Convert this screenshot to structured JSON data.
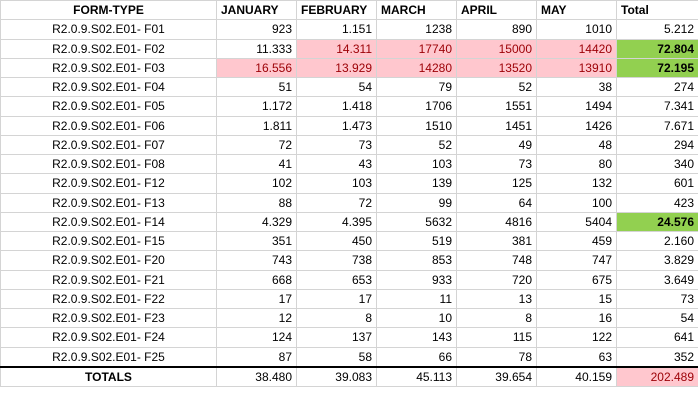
{
  "headers": [
    "FORM-TYPE",
    "JANUARY",
    "FEBRUARY",
    "MARCH",
    "APRIL",
    "MAY",
    "Total"
  ],
  "rows": [
    {
      "form": "R2.0.9.S02.E01- F01",
      "values": [
        "923",
        "1.151",
        "1238",
        "890",
        "1010",
        "5.212"
      ]
    },
    {
      "form": "R2.0.9.S02.E01- F02",
      "values": [
        "11.333",
        "14.311",
        "17740",
        "15000",
        "14420",
        "72.804"
      ]
    },
    {
      "form": "R2.0.9.S02.E01- F03",
      "values": [
        "16.556",
        "13.929",
        "14280",
        "13520",
        "13910",
        "72.195"
      ]
    },
    {
      "form": "R2.0.9.S02.E01- F04",
      "values": [
        "51",
        "54",
        "79",
        "52",
        "38",
        "274"
      ]
    },
    {
      "form": "R2.0.9.S02.E01- F05",
      "values": [
        "1.172",
        "1.418",
        "1706",
        "1551",
        "1494",
        "7.341"
      ]
    },
    {
      "form": "R2.0.9.S02.E01- F06",
      "values": [
        "1.811",
        "1.473",
        "1510",
        "1451",
        "1426",
        "7.671"
      ]
    },
    {
      "form": "R2.0.9.S02.E01- F07",
      "values": [
        "72",
        "73",
        "52",
        "49",
        "48",
        "294"
      ]
    },
    {
      "form": "R2.0.9.S02.E01- F08",
      "values": [
        "41",
        "43",
        "103",
        "73",
        "80",
        "340"
      ]
    },
    {
      "form": "R2.0.9.S02.E01- F12",
      "values": [
        "102",
        "103",
        "139",
        "125",
        "132",
        "601"
      ]
    },
    {
      "form": "R2.0.9.S02.E01- F13",
      "values": [
        "88",
        "72",
        "99",
        "64",
        "100",
        "423"
      ]
    },
    {
      "form": "R2.0.9.S02.E01- F14",
      "values": [
        "4.329",
        "4.395",
        "5632",
        "4816",
        "5404",
        "24.576"
      ]
    },
    {
      "form": "R2.0.9.S02.E01- F15",
      "values": [
        "351",
        "450",
        "519",
        "381",
        "459",
        "2.160"
      ]
    },
    {
      "form": "R2.0.9.S02.E01- F20",
      "values": [
        "743",
        "738",
        "853",
        "748",
        "747",
        "3.829"
      ]
    },
    {
      "form": "R2.0.9.S02.E01- F21",
      "values": [
        "668",
        "653",
        "933",
        "720",
        "675",
        "3.649"
      ]
    },
    {
      "form": "R2.0.9.S02.E01- F22",
      "values": [
        "17",
        "17",
        "11",
        "13",
        "15",
        "73"
      ]
    },
    {
      "form": "R2.0.9.S02.E01- F23",
      "values": [
        "12",
        "8",
        "10",
        "8",
        "16",
        "54"
      ]
    },
    {
      "form": "R2.0.9.S02.E01- F24",
      "values": [
        "124",
        "137",
        "143",
        "115",
        "122",
        "641"
      ]
    },
    {
      "form": "R2.0.9.S02.E01- F25",
      "values": [
        "87",
        "58",
        "66",
        "78",
        "63",
        "352"
      ]
    }
  ],
  "totals": {
    "label": "TOTALS",
    "values": [
      "38.480",
      "39.083",
      "45.113",
      "39.654",
      "40.159",
      "202.489"
    ]
  },
  "highlight_colors": {
    "pink_fill": "#ffc7ce",
    "pink_text": "#9c0006",
    "green_fill": "#92d050"
  }
}
